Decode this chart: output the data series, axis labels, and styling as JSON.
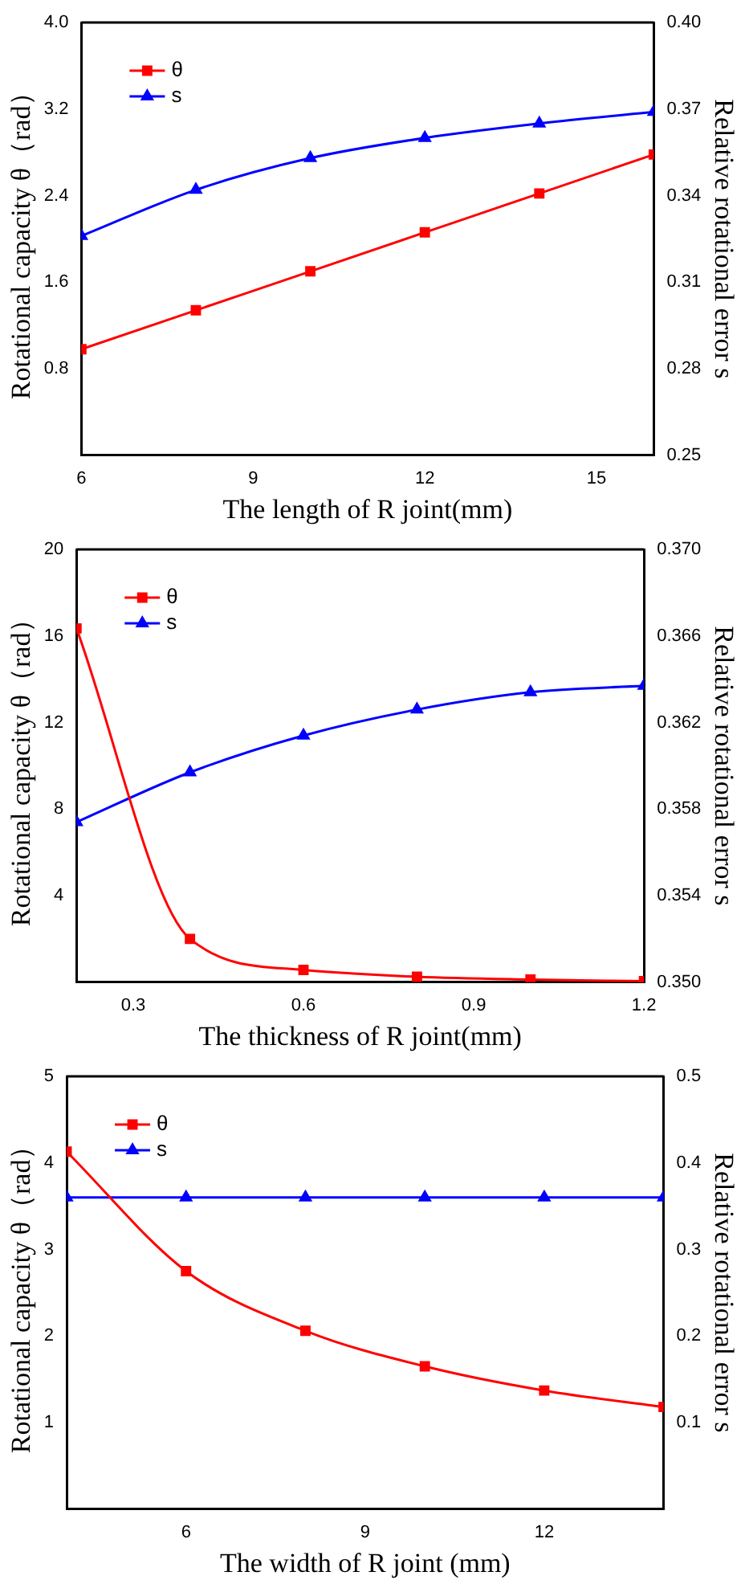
{
  "chart_data": [
    {
      "type": "line",
      "xlabel": "The length of R joint(mm)",
      "ylabel": "Rotational capacity θ（rad）",
      "y2label": "Relative rotational error s",
      "x": [
        6,
        8,
        10,
        12,
        14,
        16
      ],
      "xlim": [
        6,
        16
      ],
      "xticks": [
        6,
        9,
        12,
        15
      ],
      "ylim": [
        0,
        4
      ],
      "yticks": [
        0.8,
        1.6,
        2.4,
        3.2,
        "4.0"
      ],
      "y2lim": [
        0.25,
        0.4
      ],
      "y2ticks": [
        0.25,
        0.28,
        0.31,
        0.34,
        0.37,
        {
          "value": 0.4,
          "label": "0.40"
        }
      ],
      "series": [
        {
          "name": "θ",
          "color": "#ff0000",
          "marker": "square",
          "values": [
            0.98,
            1.34,
            1.7,
            2.06,
            2.42,
            2.78
          ]
        },
        {
          "name": "s",
          "color": "#0000ff",
          "marker": "triangle",
          "axis": "y2",
          "values": [
            0.326,
            0.342,
            0.353,
            0.36,
            0.365,
            0.369
          ]
        }
      ],
      "legend": "top left",
      "grid": false,
      "line_style": "solid"
    },
    {
      "type": "line",
      "xlabel": "The thickness of R joint(mm)",
      "ylabel": "Rotational capacity θ（rad）",
      "y2label": "Relative rotational error s",
      "x": [
        0.2,
        0.4,
        0.6,
        0.8,
        1.0,
        1.2
      ],
      "xlim": [
        0.2,
        1.2
      ],
      "xticks": [
        0.3,
        0.6,
        0.9,
        1.2
      ],
      "ylim": [
        0,
        20
      ],
      "yticks": [
        4,
        8,
        12,
        16,
        20
      ],
      "y2lim": [
        0.35,
        0.37
      ],
      "y2ticks": [
        {
          "value": 0.35,
          "label": "0.350"
        },
        0.354,
        0.358,
        0.362,
        0.366,
        {
          "value": 0.37,
          "label": "0.370"
        }
      ],
      "series": [
        {
          "name": "θ",
          "color": "#ff0000",
          "marker": "square",
          "values": [
            16.35,
            2.0,
            0.57,
            0.25,
            0.12,
            0.05
          ]
        },
        {
          "name": "s",
          "color": "#0000ff",
          "marker": "triangle",
          "axis": "y2",
          "values": [
            0.3574,
            0.3597,
            0.3614,
            0.3626,
            0.3634,
            0.3637
          ]
        }
      ],
      "legend": "top left",
      "grid": false,
      "line_style": "solid"
    },
    {
      "type": "line",
      "xlabel": "The width of R joint (mm)",
      "ylabel": "Rotational capacity θ（rad）",
      "y2label": "Relative rotational error s",
      "x": [
        4,
        6,
        8,
        10,
        12,
        14
      ],
      "xlim": [
        4,
        14
      ],
      "xticks": [
        6,
        9,
        12
      ],
      "ylim": [
        0,
        5
      ],
      "yticks": [
        1,
        2,
        3,
        4,
        5
      ],
      "y2lim": [
        0,
        0.5
      ],
      "y2ticks": [
        0.1,
        0.2,
        0.3,
        0.4,
        0.5
      ],
      "series": [
        {
          "name": "θ",
          "color": "#ff0000",
          "marker": "square",
          "values": [
            4.13,
            2.75,
            2.06,
            1.65,
            1.37,
            1.18
          ]
        },
        {
          "name": "s",
          "color": "#0000ff",
          "marker": "triangle",
          "axis": "y2",
          "values": [
            0.36,
            0.36,
            0.36,
            0.36,
            0.36,
            0.36
          ]
        }
      ],
      "legend": "top left",
      "grid": false,
      "line_style": "solid"
    }
  ]
}
